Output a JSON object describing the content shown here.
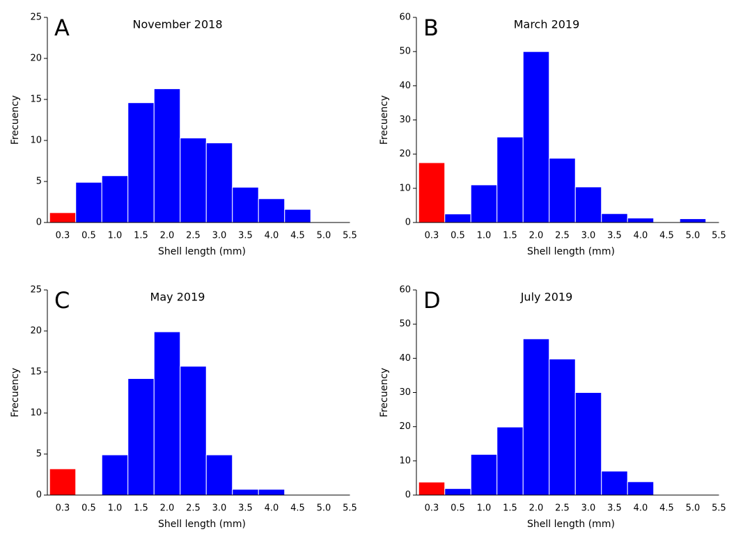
{
  "chart_data": [
    {
      "type": "bar",
      "panel_label": "A",
      "title": "November 2018",
      "x_label": "Shell length (mm)",
      "y_label": "Frecuency",
      "categories": [
        "0.3",
        "0.5",
        "1.0",
        "1.5",
        "2.0",
        "2.5",
        "3.0",
        "3.5",
        "4.0",
        "4.5",
        "5.0",
        "5.5"
      ],
      "values": [
        1.2,
        4.9,
        5.7,
        14.6,
        16.3,
        10.3,
        9.7,
        4.3,
        2.9,
        1.6,
        0,
        0
      ],
      "colors": [
        "#ff0000",
        "#0000ff",
        "#0000ff",
        "#0000ff",
        "#0000ff",
        "#0000ff",
        "#0000ff",
        "#0000ff",
        "#0000ff",
        "#0000ff",
        "#0000ff",
        "#0000ff"
      ],
      "ylim": [
        0,
        25
      ],
      "yticks": [
        0,
        5,
        10,
        15,
        20,
        25
      ]
    },
    {
      "type": "bar",
      "panel_label": "B",
      "title": "March 2019",
      "x_label": "Shell length (mm)",
      "y_label": "Frecuency",
      "categories": [
        "0.3",
        "0.5",
        "1.0",
        "1.5",
        "2.0",
        "2.5",
        "3.0",
        "3.5",
        "4.0",
        "4.5",
        "5.0",
        "5.5"
      ],
      "values": [
        17.5,
        2.5,
        11,
        25,
        50,
        18.8,
        10.4,
        2.6,
        1.3,
        0,
        1.1,
        0
      ],
      "colors": [
        "#ff0000",
        "#0000ff",
        "#0000ff",
        "#0000ff",
        "#0000ff",
        "#0000ff",
        "#0000ff",
        "#0000ff",
        "#0000ff",
        "#0000ff",
        "#0000ff",
        "#0000ff"
      ],
      "ylim": [
        0,
        60
      ],
      "yticks": [
        0,
        10,
        20,
        30,
        40,
        50,
        60
      ]
    },
    {
      "type": "bar",
      "panel_label": "C",
      "title": "May 2019",
      "x_label": "Shell length (mm)",
      "y_label": "Frecuency",
      "categories": [
        "0.3",
        "0.5",
        "1.0",
        "1.5",
        "2.0",
        "2.5",
        "3.0",
        "3.5",
        "4.0",
        "4.5",
        "5.0",
        "5.5"
      ],
      "values": [
        3.2,
        0,
        4.9,
        14.2,
        19.9,
        15.7,
        4.9,
        0.7,
        0.7,
        0,
        0,
        0
      ],
      "colors": [
        "#ff0000",
        "#0000ff",
        "#0000ff",
        "#0000ff",
        "#0000ff",
        "#0000ff",
        "#0000ff",
        "#0000ff",
        "#0000ff",
        "#0000ff",
        "#0000ff",
        "#0000ff"
      ],
      "ylim": [
        0,
        25
      ],
      "yticks": [
        0,
        5,
        10,
        15,
        20,
        25
      ]
    },
    {
      "type": "bar",
      "panel_label": "D",
      "title": "July 2019",
      "x_label": "Shell length (mm)",
      "y_label": "Frecuency",
      "categories": [
        "0.3",
        "0.5",
        "1.0",
        "1.5",
        "2.0",
        "2.5",
        "3.0",
        "3.5",
        "4.0",
        "4.5",
        "5.0",
        "5.5"
      ],
      "values": [
        3.8,
        1.9,
        11.9,
        19.9,
        45.7,
        39.8,
        30,
        7,
        3.9,
        0,
        0,
        0
      ],
      "colors": [
        "#ff0000",
        "#0000ff",
        "#0000ff",
        "#0000ff",
        "#0000ff",
        "#0000ff",
        "#0000ff",
        "#0000ff",
        "#0000ff",
        "#0000ff",
        "#0000ff",
        "#0000ff"
      ],
      "ylim": [
        0,
        60
      ],
      "yticks": [
        0,
        10,
        20,
        30,
        40,
        50,
        60
      ]
    }
  ]
}
